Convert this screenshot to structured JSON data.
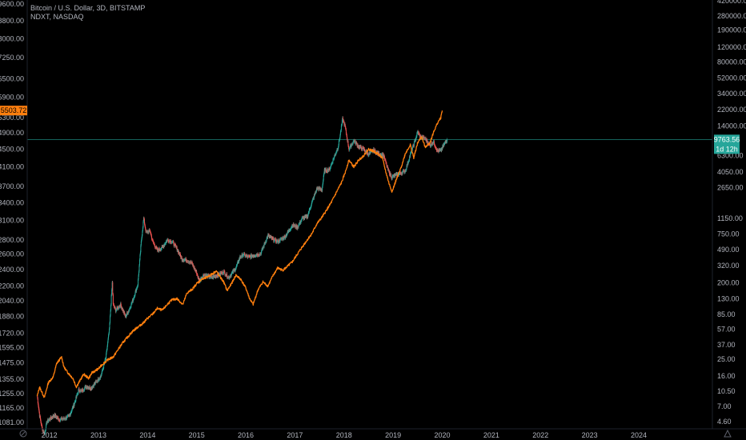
{
  "legend": {
    "main_series": "Bitcoin / U.S. Dollar, 3D, BITSTAMP",
    "compare_series": "NDXT, NASDAQ"
  },
  "colors": {
    "background": "#000000",
    "axis_text": "#b2b5be",
    "candle_up": "#26a69a",
    "candle_down": "#ef5350",
    "compare_line": "#ff7f0e",
    "price_line": "#26a69a",
    "left_tag": "#ff7f0e",
    "right_tag": "#26a69a"
  },
  "bottom_icons": {
    "left": "tradingview-logo-icon",
    "right": "auto-scale-icon"
  },
  "price_tags": {
    "left": "5503.72",
    "right_price": "9763.56",
    "right_countdown": "1d 12h"
  },
  "chart_data": {
    "type": "line",
    "x_axis": {
      "labels": [
        "2012",
        "2013",
        "2014",
        "2015",
        "2016",
        "2017",
        "2018",
        "2019",
        "2020",
        "2021",
        "2022",
        "2023",
        "2024"
      ],
      "range": [
        2011.55,
        2025.5
      ]
    },
    "left_axis": {
      "scale": "log",
      "range": [
        1045,
        9800
      ],
      "ticks": [
        "9600.00",
        "8800.00",
        "8000.00",
        "7250.00",
        "6500.00",
        "5900.00",
        "5300.00",
        "4900.00",
        "4500.00",
        "4100.00",
        "3700.00",
        "3400.00",
        "3100.00",
        "2800.00",
        "2600.00",
        "2400.00",
        "2200.00",
        "2040.00",
        "1880.00",
        "1720.00",
        "1595.00",
        "1475.00",
        "1355.00",
        "1255.00",
        "1165.00",
        "1081.00"
      ]
    },
    "right_axis": {
      "scale": "log",
      "range": [
        3.8,
        430000
      ],
      "ticks": [
        "420000.00",
        "280000.00",
        "190000.00",
        "120000.00",
        "80000.00",
        "52000.00",
        "34000.00",
        "22000.00",
        "14000.00",
        "9763.56",
        "6300.00",
        "4050.00",
        "2650.00",
        "1150.00",
        "750.00",
        "490.00",
        "320.00",
        "200.00",
        "130.00",
        "85.00",
        "57.00",
        "37.00",
        "25.00",
        "16.00",
        "10.50",
        "7.00",
        "4.60"
      ]
    },
    "series": [
      {
        "name": "NDXT, NASDAQ",
        "axis": "left",
        "style": "line",
        "points": [
          [
            2011.75,
            1235
          ],
          [
            2011.8,
            1300
          ],
          [
            2011.9,
            1230
          ],
          [
            2011.98,
            1330
          ],
          [
            2012.08,
            1370
          ],
          [
            2012.15,
            1470
          ],
          [
            2012.25,
            1520
          ],
          [
            2012.3,
            1440
          ],
          [
            2012.38,
            1400
          ],
          [
            2012.48,
            1360
          ],
          [
            2012.55,
            1300
          ],
          [
            2012.6,
            1330
          ],
          [
            2012.7,
            1390
          ],
          [
            2012.8,
            1360
          ],
          [
            2012.87,
            1400
          ],
          [
            2013.0,
            1430
          ],
          [
            2013.1,
            1470
          ],
          [
            2013.2,
            1500
          ],
          [
            2013.3,
            1520
          ],
          [
            2013.4,
            1580
          ],
          [
            2013.5,
            1640
          ],
          [
            2013.6,
            1690
          ],
          [
            2013.7,
            1740
          ],
          [
            2013.78,
            1770
          ],
          [
            2013.9,
            1810
          ],
          [
            2014.0,
            1860
          ],
          [
            2014.1,
            1900
          ],
          [
            2014.2,
            1960
          ],
          [
            2014.3,
            1940
          ],
          [
            2014.42,
            2010
          ],
          [
            2014.5,
            2050
          ],
          [
            2014.6,
            2060
          ],
          [
            2014.72,
            2000
          ],
          [
            2014.8,
            2120
          ],
          [
            2014.92,
            2170
          ],
          [
            2015.0,
            2230
          ],
          [
            2015.1,
            2280
          ],
          [
            2015.2,
            2300
          ],
          [
            2015.3,
            2340
          ],
          [
            2015.4,
            2380
          ],
          [
            2015.45,
            2330
          ],
          [
            2015.55,
            2250
          ],
          [
            2015.62,
            2150
          ],
          [
            2015.7,
            2220
          ],
          [
            2015.8,
            2330
          ],
          [
            2015.9,
            2280
          ],
          [
            2016.0,
            2180
          ],
          [
            2016.08,
            2060
          ],
          [
            2016.15,
            2000
          ],
          [
            2016.25,
            2160
          ],
          [
            2016.35,
            2250
          ],
          [
            2016.45,
            2200
          ],
          [
            2016.55,
            2320
          ],
          [
            2016.65,
            2420
          ],
          [
            2016.75,
            2390
          ],
          [
            2016.85,
            2440
          ],
          [
            2016.95,
            2500
          ],
          [
            2017.05,
            2600
          ],
          [
            2017.15,
            2700
          ],
          [
            2017.25,
            2800
          ],
          [
            2017.35,
            2900
          ],
          [
            2017.45,
            3050
          ],
          [
            2017.55,
            3150
          ],
          [
            2017.65,
            3280
          ],
          [
            2017.75,
            3420
          ],
          [
            2017.85,
            3600
          ],
          [
            2017.95,
            3780
          ],
          [
            2018.03,
            4000
          ],
          [
            2018.1,
            4250
          ],
          [
            2018.2,
            4100
          ],
          [
            2018.3,
            4250
          ],
          [
            2018.4,
            4350
          ],
          [
            2018.5,
            4500
          ],
          [
            2018.6,
            4450
          ],
          [
            2018.7,
            4380
          ],
          [
            2018.78,
            4300
          ],
          [
            2018.85,
            4000
          ],
          [
            2018.92,
            3750
          ],
          [
            2018.98,
            3600
          ],
          [
            2019.05,
            3800
          ],
          [
            2019.15,
            4050
          ],
          [
            2019.25,
            4400
          ],
          [
            2019.35,
            4600
          ],
          [
            2019.42,
            4300
          ],
          [
            2019.5,
            4650
          ],
          [
            2019.58,
            4800
          ],
          [
            2019.65,
            4550
          ],
          [
            2019.75,
            4650
          ],
          [
            2019.82,
            4900
          ],
          [
            2019.9,
            5150
          ],
          [
            2019.97,
            5300
          ],
          [
            2020.0,
            5503.72
          ]
        ]
      },
      {
        "name": "Bitcoin / U.S. Dollar, 3D, BITSTAMP",
        "axis": "right",
        "style": "candles",
        "points": [
          [
            2011.75,
            9.5
          ],
          [
            2011.8,
            5.5
          ],
          [
            2011.85,
            3.9
          ],
          [
            2011.9,
            3.3
          ],
          [
            2011.95,
            4.6
          ],
          [
            2012.0,
            4.9
          ],
          [
            2012.1,
            5.5
          ],
          [
            2012.2,
            4.9
          ],
          [
            2012.3,
            5.0
          ],
          [
            2012.4,
            5.3
          ],
          [
            2012.5,
            7.3
          ],
          [
            2012.6,
            11
          ],
          [
            2012.65,
            10.5
          ],
          [
            2012.75,
            12
          ],
          [
            2012.85,
            11.5
          ],
          [
            2012.95,
            13.5
          ],
          [
            2013.05,
            16
          ],
          [
            2013.15,
            26
          ],
          [
            2013.22,
            55
          ],
          [
            2013.28,
            200
          ],
          [
            2013.3,
            110
          ],
          [
            2013.35,
            95
          ],
          [
            2013.45,
            110
          ],
          [
            2013.55,
            80
          ],
          [
            2013.62,
            95
          ],
          [
            2013.7,
            125
          ],
          [
            2013.8,
            190
          ],
          [
            2013.87,
            600
          ],
          [
            2013.92,
            1150
          ],
          [
            2013.97,
            780
          ],
          [
            2014.05,
            820
          ],
          [
            2014.1,
            620
          ],
          [
            2014.2,
            480
          ],
          [
            2014.3,
            520
          ],
          [
            2014.4,
            640
          ],
          [
            2014.5,
            610
          ],
          [
            2014.6,
            500
          ],
          [
            2014.7,
            380
          ],
          [
            2014.8,
            370
          ],
          [
            2014.9,
            340
          ],
          [
            2015.0,
            260
          ],
          [
            2015.05,
            210
          ],
          [
            2015.15,
            250
          ],
          [
            2015.3,
            230
          ],
          [
            2015.45,
            250
          ],
          [
            2015.55,
            270
          ],
          [
            2015.65,
            230
          ],
          [
            2015.8,
            300
          ],
          [
            2015.88,
            400
          ],
          [
            2015.95,
            430
          ],
          [
            2016.05,
            400
          ],
          [
            2016.15,
            420
          ],
          [
            2016.3,
            440
          ],
          [
            2016.45,
            720
          ],
          [
            2016.55,
            650
          ],
          [
            2016.65,
            610
          ],
          [
            2016.8,
            700
          ],
          [
            2016.95,
            960
          ],
          [
            2017.05,
            900
          ],
          [
            2017.15,
            1150
          ],
          [
            2017.25,
            1200
          ],
          [
            2017.35,
            1800
          ],
          [
            2017.45,
            2600
          ],
          [
            2017.55,
            2500
          ],
          [
            2017.6,
            4200
          ],
          [
            2017.7,
            4300
          ],
          [
            2017.8,
            6100
          ],
          [
            2017.88,
            8000
          ],
          [
            2017.92,
            11000
          ],
          [
            2017.97,
            17000
          ],
          [
            2018.02,
            14000
          ],
          [
            2018.1,
            7500
          ],
          [
            2018.2,
            9500
          ],
          [
            2018.3,
            8000
          ],
          [
            2018.4,
            7500
          ],
          [
            2018.5,
            6500
          ],
          [
            2018.6,
            7300
          ],
          [
            2018.7,
            6600
          ],
          [
            2018.8,
            6400
          ],
          [
            2018.9,
            4200
          ],
          [
            2018.97,
            3500
          ],
          [
            2019.05,
            3700
          ],
          [
            2019.15,
            3900
          ],
          [
            2019.25,
            4200
          ],
          [
            2019.35,
            6500
          ],
          [
            2019.42,
            8500
          ],
          [
            2019.5,
            12000
          ],
          [
            2019.55,
            10500
          ],
          [
            2019.65,
            10000
          ],
          [
            2019.75,
            8300
          ],
          [
            2019.82,
            9200
          ],
          [
            2019.9,
            7200
          ],
          [
            2019.97,
            7200
          ],
          [
            2020.03,
            8400
          ],
          [
            2020.1,
            9763.56
          ]
        ]
      }
    ],
    "price_line": {
      "axis": "right",
      "value": 9763.56
    }
  }
}
